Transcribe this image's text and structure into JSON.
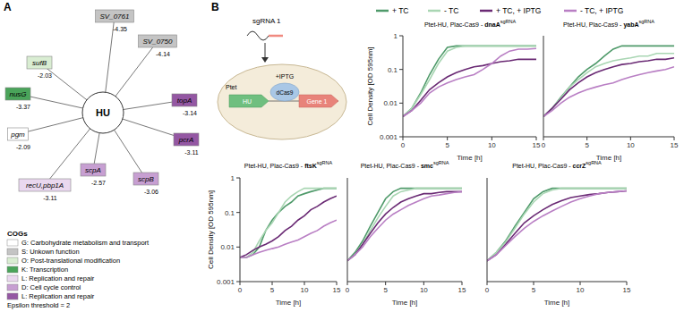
{
  "panel_a": {
    "label": "A",
    "center": "HU",
    "nodes": [
      {
        "label": "SV_0761",
        "value": -4.35,
        "cog": 1
      },
      {
        "label": "SV_0750",
        "value": -4.14,
        "cog": 1
      },
      {
        "label": "topA",
        "value": -3.14,
        "cog": 6
      },
      {
        "label": "pcrA",
        "value": -3.11,
        "cog": 6
      },
      {
        "label": "scpB",
        "value": -3.06,
        "cog": 5
      },
      {
        "label": "scpA",
        "value": -2.57,
        "cog": 5
      },
      {
        "label": "recU,pbp1A",
        "value": -3.11,
        "cog": 4
      },
      {
        "label": "pgm",
        "value": -2.09,
        "cog": 0
      },
      {
        "label": "nusG",
        "value": -3.37,
        "cog": 3
      },
      {
        "label": "sufB",
        "value": -2.03,
        "cog": 2
      }
    ],
    "legend": {
      "title": "COGs",
      "items": [
        {
          "label": "G: Carbohydrate metabolism and transport",
          "color": "#ffffff"
        },
        {
          "label": "S: Unkown function",
          "color": "#c4c4c4"
        },
        {
          "label": "O: Post-translational modification",
          "color": "#d9edd2"
        },
        {
          "label": "K: Transcription",
          "color": "#4aa45a"
        },
        {
          "label": "L: Replication and repair",
          "color": "#ead8ef"
        },
        {
          "label": "D: Cell cycle control",
          "color": "#c79fd2"
        },
        {
          "label": "L: Replication and repair",
          "color": "#9457a3"
        }
      ]
    },
    "note": "Epsilon threshold = 2"
  },
  "panel_b": {
    "label": "B",
    "schematic": {
      "sgrna": "sgRNA 1",
      "inducer": "+IPTG",
      "promoter": "Ptet",
      "gene_hu": "HU",
      "protein": "dCas9",
      "target": "Gene 1"
    }
  },
  "chart_data": [
    {
      "type": "line",
      "title": "Ptet-HU, Plac-Cas9 -",
      "title_gene": "dnaA",
      "title_sup": "sgRNA",
      "xlabel": "Time [h]",
      "ylabel": "Cell Density [OD 595nm]",
      "log": "y",
      "xlim": [
        0,
        15
      ],
      "xticks": [
        0,
        5,
        10,
        15
      ],
      "ylim": [
        0.001,
        1
      ],
      "yticks": [
        0.001,
        0.01,
        0.1,
        1
      ],
      "x": [
        0,
        1,
        2,
        3,
        4,
        5,
        6,
        7,
        8,
        9,
        10,
        11,
        12,
        13,
        14,
        15
      ],
      "series": [
        {
          "name": "+ TC",
          "color": "#4f9a6a",
          "values": [
            0.004,
            0.007,
            0.02,
            0.07,
            0.2,
            0.45,
            0.5,
            0.5,
            0.5,
            0.5,
            0.5,
            0.5,
            0.5,
            0.5,
            0.5,
            0.5
          ]
        },
        {
          "name": "- TC",
          "color": "#a9d6b3",
          "values": [
            0.004,
            0.007,
            0.018,
            0.05,
            0.15,
            0.35,
            0.45,
            0.5,
            0.5,
            0.5,
            0.5,
            0.5,
            0.5,
            0.5,
            0.5,
            0.5
          ]
        },
        {
          "name": "+ TC, + IPTG",
          "color": "#6a2a74",
          "values": [
            0.004,
            0.006,
            0.012,
            0.025,
            0.04,
            0.06,
            0.08,
            0.1,
            0.12,
            0.13,
            0.15,
            0.17,
            0.18,
            0.2,
            0.2,
            0.2
          ]
        },
        {
          "name": "- TC, + IPTG",
          "color": "#b97fc4",
          "values": [
            0.004,
            0.006,
            0.01,
            0.02,
            0.03,
            0.04,
            0.05,
            0.06,
            0.07,
            0.1,
            0.15,
            0.25,
            0.35,
            0.4,
            0.4,
            0.42
          ]
        }
      ]
    },
    {
      "type": "line",
      "title": "Ptet-HU, Plac-Cas9 -",
      "title_gene": "yabA",
      "title_sup": "sgRNA",
      "xlabel": "Time [h]",
      "log": "y",
      "tick_labels": "x",
      "xlim": [
        0,
        15
      ],
      "xticks": [
        0,
        5,
        10,
        15
      ],
      "ylim": [
        0.001,
        1
      ],
      "yticks": [
        0.001,
        0.01,
        0.1,
        1
      ],
      "x": [
        0,
        1,
        2,
        3,
        4,
        5,
        6,
        7,
        8,
        9,
        10,
        11,
        12,
        13,
        14,
        15
      ],
      "series": [
        {
          "name": "+ TC",
          "color": "#4f9a6a",
          "values": [
            0.004,
            0.007,
            0.015,
            0.03,
            0.06,
            0.1,
            0.15,
            0.25,
            0.4,
            0.5,
            0.5,
            0.5,
            0.5,
            0.5,
            0.5,
            0.5
          ]
        },
        {
          "name": "- TC",
          "color": "#a9d6b3",
          "values": [
            0.004,
            0.007,
            0.014,
            0.03,
            0.05,
            0.08,
            0.12,
            0.15,
            0.18,
            0.2,
            0.22,
            0.25,
            0.25,
            0.3,
            0.3,
            0.3
          ]
        },
        {
          "name": "+ TC, + IPTG",
          "color": "#6a2a74",
          "values": [
            0.004,
            0.007,
            0.013,
            0.025,
            0.04,
            0.06,
            0.08,
            0.1,
            0.12,
            0.14,
            0.15,
            0.17,
            0.18,
            0.2,
            0.2,
            0.22
          ]
        },
        {
          "name": "- TC, + IPTG",
          "color": "#b97fc4",
          "values": [
            0.004,
            0.006,
            0.01,
            0.015,
            0.02,
            0.025,
            0.03,
            0.035,
            0.04,
            0.05,
            0.06,
            0.07,
            0.08,
            0.09,
            0.1,
            0.12
          ]
        }
      ]
    },
    {
      "type": "line",
      "title": "Ptet-HU, Plac-Cas9 -",
      "title_gene": "ftsK",
      "title_sup": "sgRNA",
      "xlabel": "Time [h]",
      "ylabel": "Cell Density [OD 595nm]",
      "log": "y",
      "xlim": [
        0,
        15
      ],
      "xticks": [
        0,
        5,
        10,
        15
      ],
      "ylim": [
        0.001,
        1
      ],
      "yticks": [
        0.001,
        0.01,
        0.1,
        1
      ],
      "x": [
        0,
        1,
        2,
        3,
        4,
        5,
        6,
        7,
        8,
        9,
        10,
        11,
        12,
        13,
        14,
        15
      ],
      "series": [
        {
          "name": "+ TC",
          "color": "#4f9a6a",
          "values": [
            0.005,
            0.005,
            0.006,
            0.01,
            0.03,
            0.06,
            0.1,
            0.15,
            0.2,
            0.3,
            0.35,
            0.4,
            0.45,
            0.5,
            0.5,
            0.5
          ]
        },
        {
          "name": "- TC",
          "color": "#a9d6b3",
          "values": [
            0.005,
            0.005,
            0.007,
            0.015,
            0.03,
            0.05,
            0.1,
            0.2,
            0.3,
            0.4,
            0.5,
            0.5,
            0.5,
            0.5,
            0.5,
            0.5
          ]
        },
        {
          "name": "+ TC, + IPTG",
          "color": "#6a2a74",
          "values": [
            0.005,
            0.006,
            0.008,
            0.01,
            0.012,
            0.015,
            0.02,
            0.03,
            0.04,
            0.06,
            0.08,
            0.12,
            0.15,
            0.2,
            0.25,
            0.3
          ]
        },
        {
          "name": "- TC, + IPTG",
          "color": "#b97fc4",
          "values": [
            0.005,
            0.005,
            0.006,
            0.007,
            0.008,
            0.009,
            0.01,
            0.012,
            0.014,
            0.016,
            0.02,
            0.025,
            0.03,
            0.04,
            0.05,
            0.06
          ]
        }
      ]
    },
    {
      "type": "line",
      "title": "Ptet-HU, Plac-Cas9 -",
      "title_gene": "smc",
      "title_sup": "sgRNA",
      "xlabel": "Time [h]",
      "log": "y",
      "tick_labels": "x",
      "xlim": [
        0,
        15
      ],
      "xticks": [
        0,
        5,
        10,
        15
      ],
      "ylim": [
        0.001,
        1
      ],
      "yticks": [
        0.001,
        0.01,
        0.1,
        1
      ],
      "x": [
        0,
        1,
        2,
        3,
        4,
        5,
        6,
        7,
        8,
        9,
        10,
        11,
        12,
        13,
        14,
        15
      ],
      "series": [
        {
          "name": "+ TC",
          "color": "#4f9a6a",
          "values": [
            0.004,
            0.007,
            0.015,
            0.04,
            0.1,
            0.25,
            0.4,
            0.5,
            0.5,
            0.5,
            0.5,
            0.5,
            0.5,
            0.5,
            0.5,
            0.5
          ]
        },
        {
          "name": "- TC",
          "color": "#a9d6b3",
          "values": [
            0.004,
            0.006,
            0.012,
            0.03,
            0.07,
            0.15,
            0.3,
            0.4,
            0.45,
            0.5,
            0.5,
            0.5,
            0.5,
            0.5,
            0.5,
            0.5
          ]
        },
        {
          "name": "+ TC, + IPTG",
          "color": "#6a2a74",
          "values": [
            0.004,
            0.006,
            0.012,
            0.025,
            0.05,
            0.09,
            0.14,
            0.2,
            0.25,
            0.3,
            0.35,
            0.35,
            0.38,
            0.4,
            0.4,
            0.4
          ]
        },
        {
          "name": "- TC, + IPTG",
          "color": "#b97fc4",
          "values": [
            0.004,
            0.006,
            0.01,
            0.02,
            0.035,
            0.06,
            0.09,
            0.12,
            0.16,
            0.2,
            0.25,
            0.3,
            0.32,
            0.35,
            0.38,
            0.4
          ]
        }
      ]
    },
    {
      "type": "line",
      "title": "Ptet-HU, Plac-Cas9 -",
      "title_gene": "ccrZ",
      "title_sup": "sgRNA",
      "xlabel": "Time [h]",
      "log": "y",
      "tick_labels": "x",
      "xlim": [
        0,
        15
      ],
      "xticks": [
        0,
        5,
        10,
        15
      ],
      "ylim": [
        0.001,
        1
      ],
      "yticks": [
        0.001,
        0.01,
        0.1,
        1
      ],
      "x": [
        0,
        1,
        2,
        3,
        4,
        5,
        6,
        7,
        8,
        9,
        10,
        11,
        12,
        13,
        14,
        15
      ],
      "series": [
        {
          "name": "+ TC",
          "color": "#4f9a6a",
          "values": [
            0.004,
            0.007,
            0.015,
            0.04,
            0.1,
            0.25,
            0.4,
            0.5,
            0.5,
            0.5,
            0.5,
            0.5,
            0.5,
            0.5,
            0.5,
            0.5
          ]
        },
        {
          "name": "- TC",
          "color": "#a9d6b3",
          "values": [
            0.004,
            0.007,
            0.014,
            0.035,
            0.09,
            0.2,
            0.35,
            0.45,
            0.5,
            0.5,
            0.5,
            0.5,
            0.5,
            0.5,
            0.5,
            0.5
          ]
        },
        {
          "name": "+ TC, + IPTG",
          "color": "#6a2a74",
          "values": [
            0.004,
            0.006,
            0.012,
            0.025,
            0.05,
            0.08,
            0.12,
            0.17,
            0.22,
            0.27,
            0.3,
            0.33,
            0.35,
            0.38,
            0.4,
            0.42
          ]
        },
        {
          "name": "- TC, + IPTG",
          "color": "#b97fc4",
          "values": [
            0.004,
            0.006,
            0.011,
            0.02,
            0.035,
            0.055,
            0.08,
            0.11,
            0.15,
            0.2,
            0.25,
            0.3,
            0.35,
            0.38,
            0.4,
            0.42
          ]
        }
      ]
    }
  ]
}
